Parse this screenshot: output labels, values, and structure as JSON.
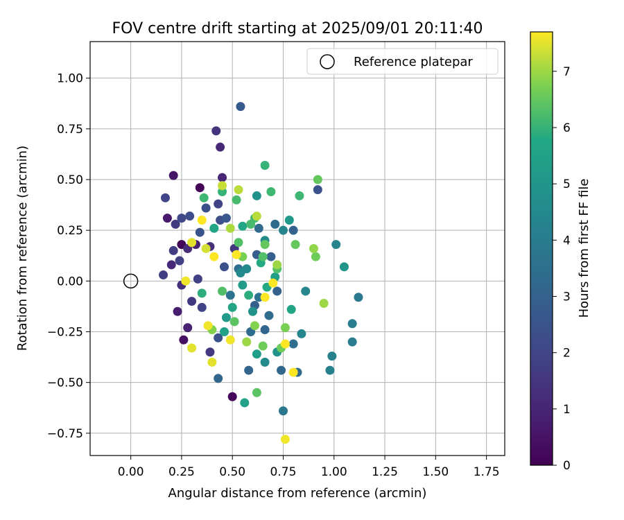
{
  "chart_data": {
    "type": "scatter",
    "title": "FOV centre drift starting at 2025/09/01 20:11:40",
    "xlabel": "Angular distance from reference (arcmin)",
    "ylabel": "Rotation from reference (arcmin)",
    "xlim": [
      -0.2,
      1.84
    ],
    "ylim": [
      -0.86,
      1.18
    ],
    "x_ticks": [
      0.0,
      0.25,
      0.5,
      0.75,
      1.0,
      1.25,
      1.5,
      1.75
    ],
    "x_tick_labels": [
      "0.00",
      "0.25",
      "0.50",
      "0.75",
      "1.00",
      "1.25",
      "1.50",
      "1.75"
    ],
    "y_ticks": [
      -0.75,
      -0.5,
      -0.25,
      0.0,
      0.25,
      0.5,
      0.75,
      1.0
    ],
    "y_tick_labels": [
      "−0.75",
      "−0.50",
      "−0.25",
      "0.00",
      "0.25",
      "0.50",
      "0.75",
      "1.00"
    ],
    "grid": true,
    "legend": {
      "position": "top-right",
      "entries": [
        "Reference platepar"
      ]
    },
    "reference_point": {
      "x": 0.0,
      "y": 0.0,
      "label": "Reference platepar"
    },
    "colorbar": {
      "label": "Hours from first FF file",
      "colormap": "viridis",
      "range": [
        0,
        7.7
      ],
      "ticks": [
        0,
        1,
        2,
        3,
        4,
        5,
        6,
        7
      ],
      "tick_labels": [
        "0",
        "1",
        "2",
        "3",
        "4",
        "5",
        "6",
        "7"
      ]
    },
    "points": [
      {
        "x": 0.25,
        "y": 0.18,
        "c": 0.1
      },
      {
        "x": 0.34,
        "y": 0.46,
        "c": 0.1
      },
      {
        "x": 0.5,
        "y": -0.57,
        "c": 0.2
      },
      {
        "x": 0.26,
        "y": -0.29,
        "c": 0.4
      },
      {
        "x": 0.21,
        "y": 0.52,
        "c": 0.6
      },
      {
        "x": 0.18,
        "y": 0.31,
        "c": 0.7
      },
      {
        "x": 0.23,
        "y": -0.15,
        "c": 0.8
      },
      {
        "x": 0.28,
        "y": -0.23,
        "c": 0.9
      },
      {
        "x": 0.32,
        "y": 0.18,
        "c": 0.9
      },
      {
        "x": 0.45,
        "y": 0.51,
        "c": 1.0
      },
      {
        "x": 0.44,
        "y": 0.66,
        "c": 1.1
      },
      {
        "x": 0.2,
        "y": 0.08,
        "c": 1.1
      },
      {
        "x": 0.28,
        "y": 0.16,
        "c": 1.2
      },
      {
        "x": 0.25,
        "y": -0.02,
        "c": 1.3
      },
      {
        "x": 0.39,
        "y": 0.17,
        "c": 1.3
      },
      {
        "x": 0.42,
        "y": 0.74,
        "c": 1.4
      },
      {
        "x": 0.51,
        "y": 0.16,
        "c": 1.5
      },
      {
        "x": 0.22,
        "y": 0.28,
        "c": 1.6
      },
      {
        "x": 0.3,
        "y": -0.1,
        "c": 1.6
      },
      {
        "x": 0.39,
        "y": -0.35,
        "c": 1.6
      },
      {
        "x": 0.16,
        "y": 0.03,
        "c": 1.7
      },
      {
        "x": 0.21,
        "y": 0.15,
        "c": 1.7
      },
      {
        "x": 0.24,
        "y": 0.1,
        "c": 1.8
      },
      {
        "x": 0.33,
        "y": 0.01,
        "c": 1.8
      },
      {
        "x": 0.35,
        "y": -0.13,
        "c": 1.9
      },
      {
        "x": 0.43,
        "y": 0.38,
        "c": 1.9
      },
      {
        "x": 0.17,
        "y": 0.41,
        "c": 2.0
      },
      {
        "x": 0.25,
        "y": 0.31,
        "c": 2.1
      },
      {
        "x": 0.29,
        "y": 0.32,
        "c": 2.2
      },
      {
        "x": 0.37,
        "y": 0.36,
        "c": 2.3
      },
      {
        "x": 0.44,
        "y": 0.3,
        "c": 2.3
      },
      {
        "x": 0.46,
        "y": 0.07,
        "c": 2.4
      },
      {
        "x": 0.92,
        "y": 0.45,
        "c": 2.5
      },
      {
        "x": 0.43,
        "y": -0.28,
        "c": 2.5
      },
      {
        "x": 0.34,
        "y": 0.24,
        "c": 2.5
      },
      {
        "x": 0.47,
        "y": 0.31,
        "c": 2.6
      },
      {
        "x": 0.54,
        "y": 0.86,
        "c": 2.7
      },
      {
        "x": 0.62,
        "y": 0.13,
        "c": 2.8
      },
      {
        "x": 0.69,
        "y": 0.12,
        "c": 2.9
      },
      {
        "x": 0.61,
        "y": -0.12,
        "c": 3.0
      },
      {
        "x": 0.8,
        "y": 0.25,
        "c": 3.0
      },
      {
        "x": 0.72,
        "y": -0.05,
        "c": 3.0
      },
      {
        "x": 0.58,
        "y": -0.44,
        "c": 3.1
      },
      {
        "x": 0.66,
        "y": -0.24,
        "c": 3.1
      },
      {
        "x": 0.43,
        "y": -0.48,
        "c": 3.2
      },
      {
        "x": 0.74,
        "y": -0.44,
        "c": 3.2
      },
      {
        "x": 0.82,
        "y": -0.45,
        "c": 3.3
      },
      {
        "x": 0.63,
        "y": 0.26,
        "c": 3.3
      },
      {
        "x": 0.71,
        "y": 0.28,
        "c": 3.3
      },
      {
        "x": 0.59,
        "y": -0.25,
        "c": 3.4
      },
      {
        "x": 0.68,
        "y": -0.17,
        "c": 3.4
      },
      {
        "x": 0.8,
        "y": -0.31,
        "c": 3.5
      },
      {
        "x": 0.53,
        "y": 0.06,
        "c": 3.5
      },
      {
        "x": 0.63,
        "y": -0.08,
        "c": 3.6
      },
      {
        "x": 0.49,
        "y": -0.07,
        "c": 3.6
      },
      {
        "x": 0.75,
        "y": -0.64,
        "c": 3.8
      },
      {
        "x": 1.12,
        "y": -0.08,
        "c": 3.9
      },
      {
        "x": 1.09,
        "y": -0.3,
        "c": 4.0
      },
      {
        "x": 1.09,
        "y": -0.21,
        "c": 4.1
      },
      {
        "x": 0.98,
        "y": -0.44,
        "c": 4.2
      },
      {
        "x": 0.99,
        "y": -0.37,
        "c": 4.2
      },
      {
        "x": 1.01,
        "y": 0.18,
        "c": 4.3
      },
      {
        "x": 0.75,
        "y": 0.25,
        "c": 4.3
      },
      {
        "x": 0.84,
        "y": -0.26,
        "c": 4.4
      },
      {
        "x": 0.86,
        "y": -0.05,
        "c": 4.4
      },
      {
        "x": 0.57,
        "y": 0.06,
        "c": 4.5
      },
      {
        "x": 0.54,
        "y": 0.04,
        "c": 4.5
      },
      {
        "x": 0.66,
        "y": 0.2,
        "c": 4.6
      },
      {
        "x": 0.66,
        "y": -0.4,
        "c": 4.6
      },
      {
        "x": 0.62,
        "y": 0.42,
        "c": 4.8
      },
      {
        "x": 0.72,
        "y": -0.35,
        "c": 4.9
      },
      {
        "x": 0.6,
        "y": -0.15,
        "c": 4.9
      },
      {
        "x": 1.05,
        "y": 0.07,
        "c": 5.0
      },
      {
        "x": 0.78,
        "y": 0.3,
        "c": 5.1
      },
      {
        "x": 0.47,
        "y": -0.18,
        "c": 5.2
      },
      {
        "x": 0.55,
        "y": -0.02,
        "c": 5.2
      },
      {
        "x": 0.62,
        "y": -0.36,
        "c": 5.3
      },
      {
        "x": 0.71,
        "y": 0.02,
        "c": 5.4
      },
      {
        "x": 0.46,
        "y": -0.25,
        "c": 5.5
      },
      {
        "x": 0.56,
        "y": -0.6,
        "c": 5.5
      },
      {
        "x": 0.79,
        "y": -0.14,
        "c": 5.6
      },
      {
        "x": 0.5,
        "y": -0.13,
        "c": 5.6
      },
      {
        "x": 0.41,
        "y": 0.26,
        "c": 5.7
      },
      {
        "x": 0.55,
        "y": 0.27,
        "c": 5.7
      },
      {
        "x": 0.64,
        "y": 0.09,
        "c": 5.8
      },
      {
        "x": 0.67,
        "y": -0.03,
        "c": 5.8
      },
      {
        "x": 0.58,
        "y": -0.07,
        "c": 5.9
      },
      {
        "x": 0.35,
        "y": -0.06,
        "c": 5.9
      },
      {
        "x": 0.45,
        "y": 0.44,
        "c": 6.0
      },
      {
        "x": 0.66,
        "y": 0.57,
        "c": 6.0
      },
      {
        "x": 0.69,
        "y": 0.44,
        "c": 6.1
      },
      {
        "x": 0.83,
        "y": 0.42,
        "c": 6.1
      },
      {
        "x": 0.36,
        "y": 0.41,
        "c": 6.1
      },
      {
        "x": 0.52,
        "y": 0.4,
        "c": 6.2
      },
      {
        "x": 0.59,
        "y": 0.28,
        "c": 6.2
      },
      {
        "x": 0.61,
        "y": 0.31,
        "c": 6.2
      },
      {
        "x": 0.65,
        "y": 0.12,
        "c": 6.3
      },
      {
        "x": 0.72,
        "y": 0.06,
        "c": 6.3
      },
      {
        "x": 0.53,
        "y": 0.19,
        "c": 6.3
      },
      {
        "x": 0.45,
        "y": -0.05,
        "c": 6.3
      },
      {
        "x": 0.51,
        "y": -0.2,
        "c": 6.4
      },
      {
        "x": 0.62,
        "y": -0.55,
        "c": 6.4
      },
      {
        "x": 0.92,
        "y": 0.5,
        "c": 6.5
      },
      {
        "x": 0.81,
        "y": 0.18,
        "c": 6.5
      },
      {
        "x": 0.66,
        "y": 0.18,
        "c": 6.5
      },
      {
        "x": 0.74,
        "y": -0.33,
        "c": 6.6
      },
      {
        "x": 0.65,
        "y": -0.32,
        "c": 6.6
      },
      {
        "x": 0.91,
        "y": 0.12,
        "c": 6.6
      },
      {
        "x": 0.55,
        "y": 0.12,
        "c": 6.7
      },
      {
        "x": 0.76,
        "y": -0.23,
        "c": 6.7
      },
      {
        "x": 0.61,
        "y": -0.22,
        "c": 6.8
      },
      {
        "x": 0.4,
        "y": -0.24,
        "c": 6.8
      },
      {
        "x": 0.9,
        "y": 0.16,
        "c": 6.9
      },
      {
        "x": 0.95,
        "y": -0.11,
        "c": 7.0
      },
      {
        "x": 0.57,
        "y": -0.3,
        "c": 7.0
      },
      {
        "x": 0.72,
        "y": 0.08,
        "c": 7.0
      },
      {
        "x": 0.49,
        "y": 0.26,
        "c": 7.1
      },
      {
        "x": 0.62,
        "y": 0.32,
        "c": 7.2
      },
      {
        "x": 0.53,
        "y": 0.45,
        "c": 7.2
      },
      {
        "x": 0.45,
        "y": 0.47,
        "c": 7.3
      },
      {
        "x": 0.37,
        "y": 0.16,
        "c": 7.4
      },
      {
        "x": 0.3,
        "y": 0.19,
        "c": 7.5
      },
      {
        "x": 0.4,
        "y": -0.4,
        "c": 7.5
      },
      {
        "x": 0.3,
        "y": -0.33,
        "c": 7.5
      },
      {
        "x": 0.27,
        "y": 0.0,
        "c": 7.6
      },
      {
        "x": 0.38,
        "y": -0.22,
        "c": 7.6
      },
      {
        "x": 0.49,
        "y": -0.29,
        "c": 7.6
      },
      {
        "x": 0.76,
        "y": -0.78,
        "c": 7.6
      },
      {
        "x": 0.8,
        "y": -0.45,
        "c": 7.7
      },
      {
        "x": 0.76,
        "y": -0.31,
        "c": 7.7
      },
      {
        "x": 0.66,
        "y": -0.08,
        "c": 7.7
      },
      {
        "x": 0.7,
        "y": -0.01,
        "c": 7.7
      },
      {
        "x": 0.52,
        "y": 0.13,
        "c": 7.7
      },
      {
        "x": 0.41,
        "y": 0.12,
        "c": 7.7
      },
      {
        "x": 0.35,
        "y": 0.3,
        "c": 7.7
      }
    ]
  }
}
